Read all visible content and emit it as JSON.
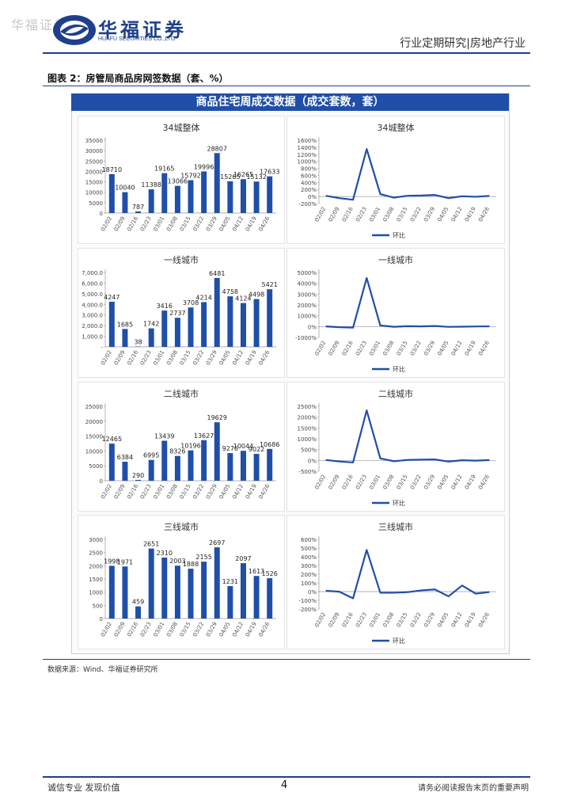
{
  "header": {
    "watermark": "华福证券",
    "logo_cn": "华福证券",
    "logo_en": "HUAFU SECURITIES CO.,LTD.",
    "right_text": "行业定期研究|房地产行业",
    "brand_color": "#1f3f8c"
  },
  "figure": {
    "title": "图表 2：房管局商品房网签数据（套、%）",
    "banner": "商品住宅周成交数据（成交套数，套）",
    "source": "数据来源：Wind、华福证券研究所"
  },
  "footer": {
    "left": "诚信专业  发现价值",
    "page": "4",
    "right": "请务必阅读报告末页的重要声明"
  },
  "chart_data": [
    {
      "type": "bar",
      "title": "34城整体",
      "categories": [
        "02/02",
        "02/09",
        "02/16",
        "02/23",
        "03/01",
        "03/08",
        "03/15",
        "03/22",
        "03/29",
        "04/05",
        "04/12",
        "04/19",
        "04/26"
      ],
      "values": [
        18710,
        10040,
        787,
        11388,
        19165,
        13066,
        15792,
        19996,
        28807,
        15265,
        16265,
        15132,
        17633
      ],
      "ylim": [
        0,
        35000
      ],
      "yticks": [
        "0",
        "5000",
        "10000",
        "15000",
        "20000",
        "25000",
        "30000",
        "35000"
      ],
      "color": "#1f4fa8"
    },
    {
      "type": "line",
      "title": "34城整体",
      "categories": [
        "02/02",
        "02/09",
        "02/16",
        "02/23",
        "03/01",
        "03/08",
        "03/15",
        "03/22",
        "03/29",
        "04/05",
        "04/12",
        "04/19",
        "04/26"
      ],
      "values": [
        20,
        -46,
        -92,
        1347,
        68,
        -32,
        21,
        27,
        44,
        -47,
        7,
        -7,
        17
      ],
      "ylim": [
        -200,
        1600
      ],
      "yticks": [
        "-200%",
        "0%",
        "200%",
        "400%",
        "600%",
        "800%",
        "1000%",
        "1200%",
        "1400%",
        "1600%"
      ],
      "legend": "环比",
      "color": "#1f4fa8"
    },
    {
      "type": "bar",
      "title": "一线城市",
      "categories": [
        "02/02",
        "02/09",
        "02/16",
        "02/23",
        "03/01",
        "03/08",
        "03/15",
        "03/22",
        "03/29",
        "04/05",
        "04/12",
        "04/19",
        "04/26"
      ],
      "values": [
        4247,
        1685,
        38,
        1742,
        3416,
        2737,
        3708,
        4214,
        6481,
        4758,
        4124,
        4498,
        5421
      ],
      "ylim": [
        0,
        7000
      ],
      "yticks": [
        "-",
        "1,000.0",
        "2,000.0",
        "3,000.0",
        "4,000.0",
        "5,000.0",
        "6,000.0",
        "7,000.0"
      ],
      "color": "#1f4fa8"
    },
    {
      "type": "line",
      "title": "一线城市",
      "categories": [
        "02/02",
        "02/09",
        "02/16",
        "02/23",
        "03/01",
        "03/08",
        "03/15",
        "03/22",
        "03/29",
        "04/05",
        "04/12",
        "04/19",
        "04/26"
      ],
      "values": [
        15,
        -60,
        -98,
        4484,
        96,
        -20,
        35,
        14,
        54,
        -27,
        -13,
        9,
        21
      ],
      "ylim": [
        -1000,
        5000
      ],
      "yticks": [
        "-1000%",
        "0%",
        "1000%",
        "2000%",
        "3000%",
        "4000%",
        "5000%"
      ],
      "legend": "环比",
      "color": "#1f4fa8"
    },
    {
      "type": "bar",
      "title": "二线城市",
      "categories": [
        "02/02",
        "02/09",
        "02/16",
        "02/23",
        "03/01",
        "03/08",
        "03/15",
        "03/22",
        "03/29",
        "04/05",
        "04/12",
        "04/19",
        "04/26"
      ],
      "values": [
        12465,
        6384,
        290,
        6995,
        13439,
        8326,
        10196,
        13627,
        19629,
        9276,
        10044,
        9022,
        10686
      ],
      "ylim": [
        0,
        25000
      ],
      "yticks": [
        "0",
        "5000",
        "10000",
        "15000",
        "20000",
        "25000"
      ],
      "color": "#1f4fa8"
    },
    {
      "type": "line",
      "title": "二线城市",
      "categories": [
        "02/02",
        "02/09",
        "02/16",
        "02/23",
        "03/01",
        "03/08",
        "03/15",
        "03/22",
        "03/29",
        "04/05",
        "04/12",
        "04/19",
        "04/26"
      ],
      "values": [
        20,
        -49,
        -95,
        2312,
        92,
        -38,
        22,
        34,
        44,
        -53,
        8,
        -10,
        18
      ],
      "ylim": [
        -500,
        2500
      ],
      "yticks": [
        "-500%",
        "0%",
        "500%",
        "1000%",
        "1500%",
        "2000%",
        "2500%"
      ],
      "legend": "环比",
      "color": "#1f4fa8"
    },
    {
      "type": "bar",
      "title": "三线城市",
      "categories": [
        "02/02",
        "02/09",
        "02/16",
        "02/23",
        "03/01",
        "03/08",
        "03/15",
        "03/22",
        "03/29",
        "04/05",
        "04/12",
        "04/19",
        "04/26"
      ],
      "values": [
        1998,
        1971,
        459,
        2651,
        2310,
        2003,
        1888,
        2155,
        2697,
        1231,
        2097,
        1613,
        1526
      ],
      "value_labels": [
        "1998",
        "1971",
        "459",
        "2651",
        "2310",
        "2003",
        "1888",
        "2155",
        "2697",
        "1231",
        "2097",
        "1613",
        "1526"
      ],
      "ylim": [
        0,
        3000
      ],
      "yticks": [
        "0",
        "500",
        "1000",
        "1500",
        "2000",
        "2500",
        "3000"
      ],
      "color": "#1f4fa8"
    },
    {
      "type": "line",
      "title": "三线城市",
      "categories": [
        "02/02",
        "02/09",
        "02/16",
        "02/23",
        "03/01",
        "03/08",
        "03/15",
        "03/22",
        "03/29",
        "04/05",
        "04/12",
        "04/19",
        "04/26"
      ],
      "values": [
        10,
        -1,
        -77,
        478,
        -13,
        -13,
        -6,
        14,
        25,
        -54,
        70,
        -23,
        -5
      ],
      "ylim": [
        -200,
        600
      ],
      "yticks": [
        "-200%",
        "-100%",
        "0%",
        "100%",
        "200%",
        "300%",
        "400%",
        "500%",
        "600%"
      ],
      "legend": "环比",
      "color": "#1f4fa8"
    }
  ]
}
